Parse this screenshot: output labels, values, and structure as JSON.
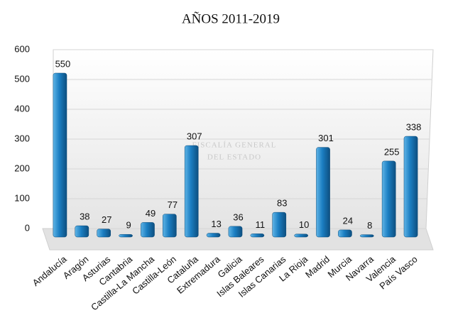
{
  "chart_data": {
    "type": "bar",
    "title": "AÑOS 2011-2019",
    "categories": [
      "Andalucía",
      "Aragón",
      "Asturias",
      "Cantabria",
      "Castilla-La Mancha",
      "Castilla-León",
      "Cataluña",
      "Extremadura",
      "Galicia",
      "Islas Baleares",
      "Islas Canarias",
      "La Rioja",
      "Madrid",
      "Murcia",
      "Navarra",
      "Valencia",
      "País Vasco"
    ],
    "values": [
      550,
      38,
      27,
      9,
      49,
      77,
      307,
      13,
      36,
      11,
      83,
      10,
      301,
      24,
      8,
      255,
      338
    ],
    "color": "#1b7ec2",
    "ylim": [
      0,
      600
    ],
    "yticks": [
      0,
      100,
      200,
      300,
      400,
      500,
      600
    ],
    "grid": true,
    "watermark": [
      "FISCALÍA GENERAL",
      "DEL ESTADO"
    ]
  }
}
